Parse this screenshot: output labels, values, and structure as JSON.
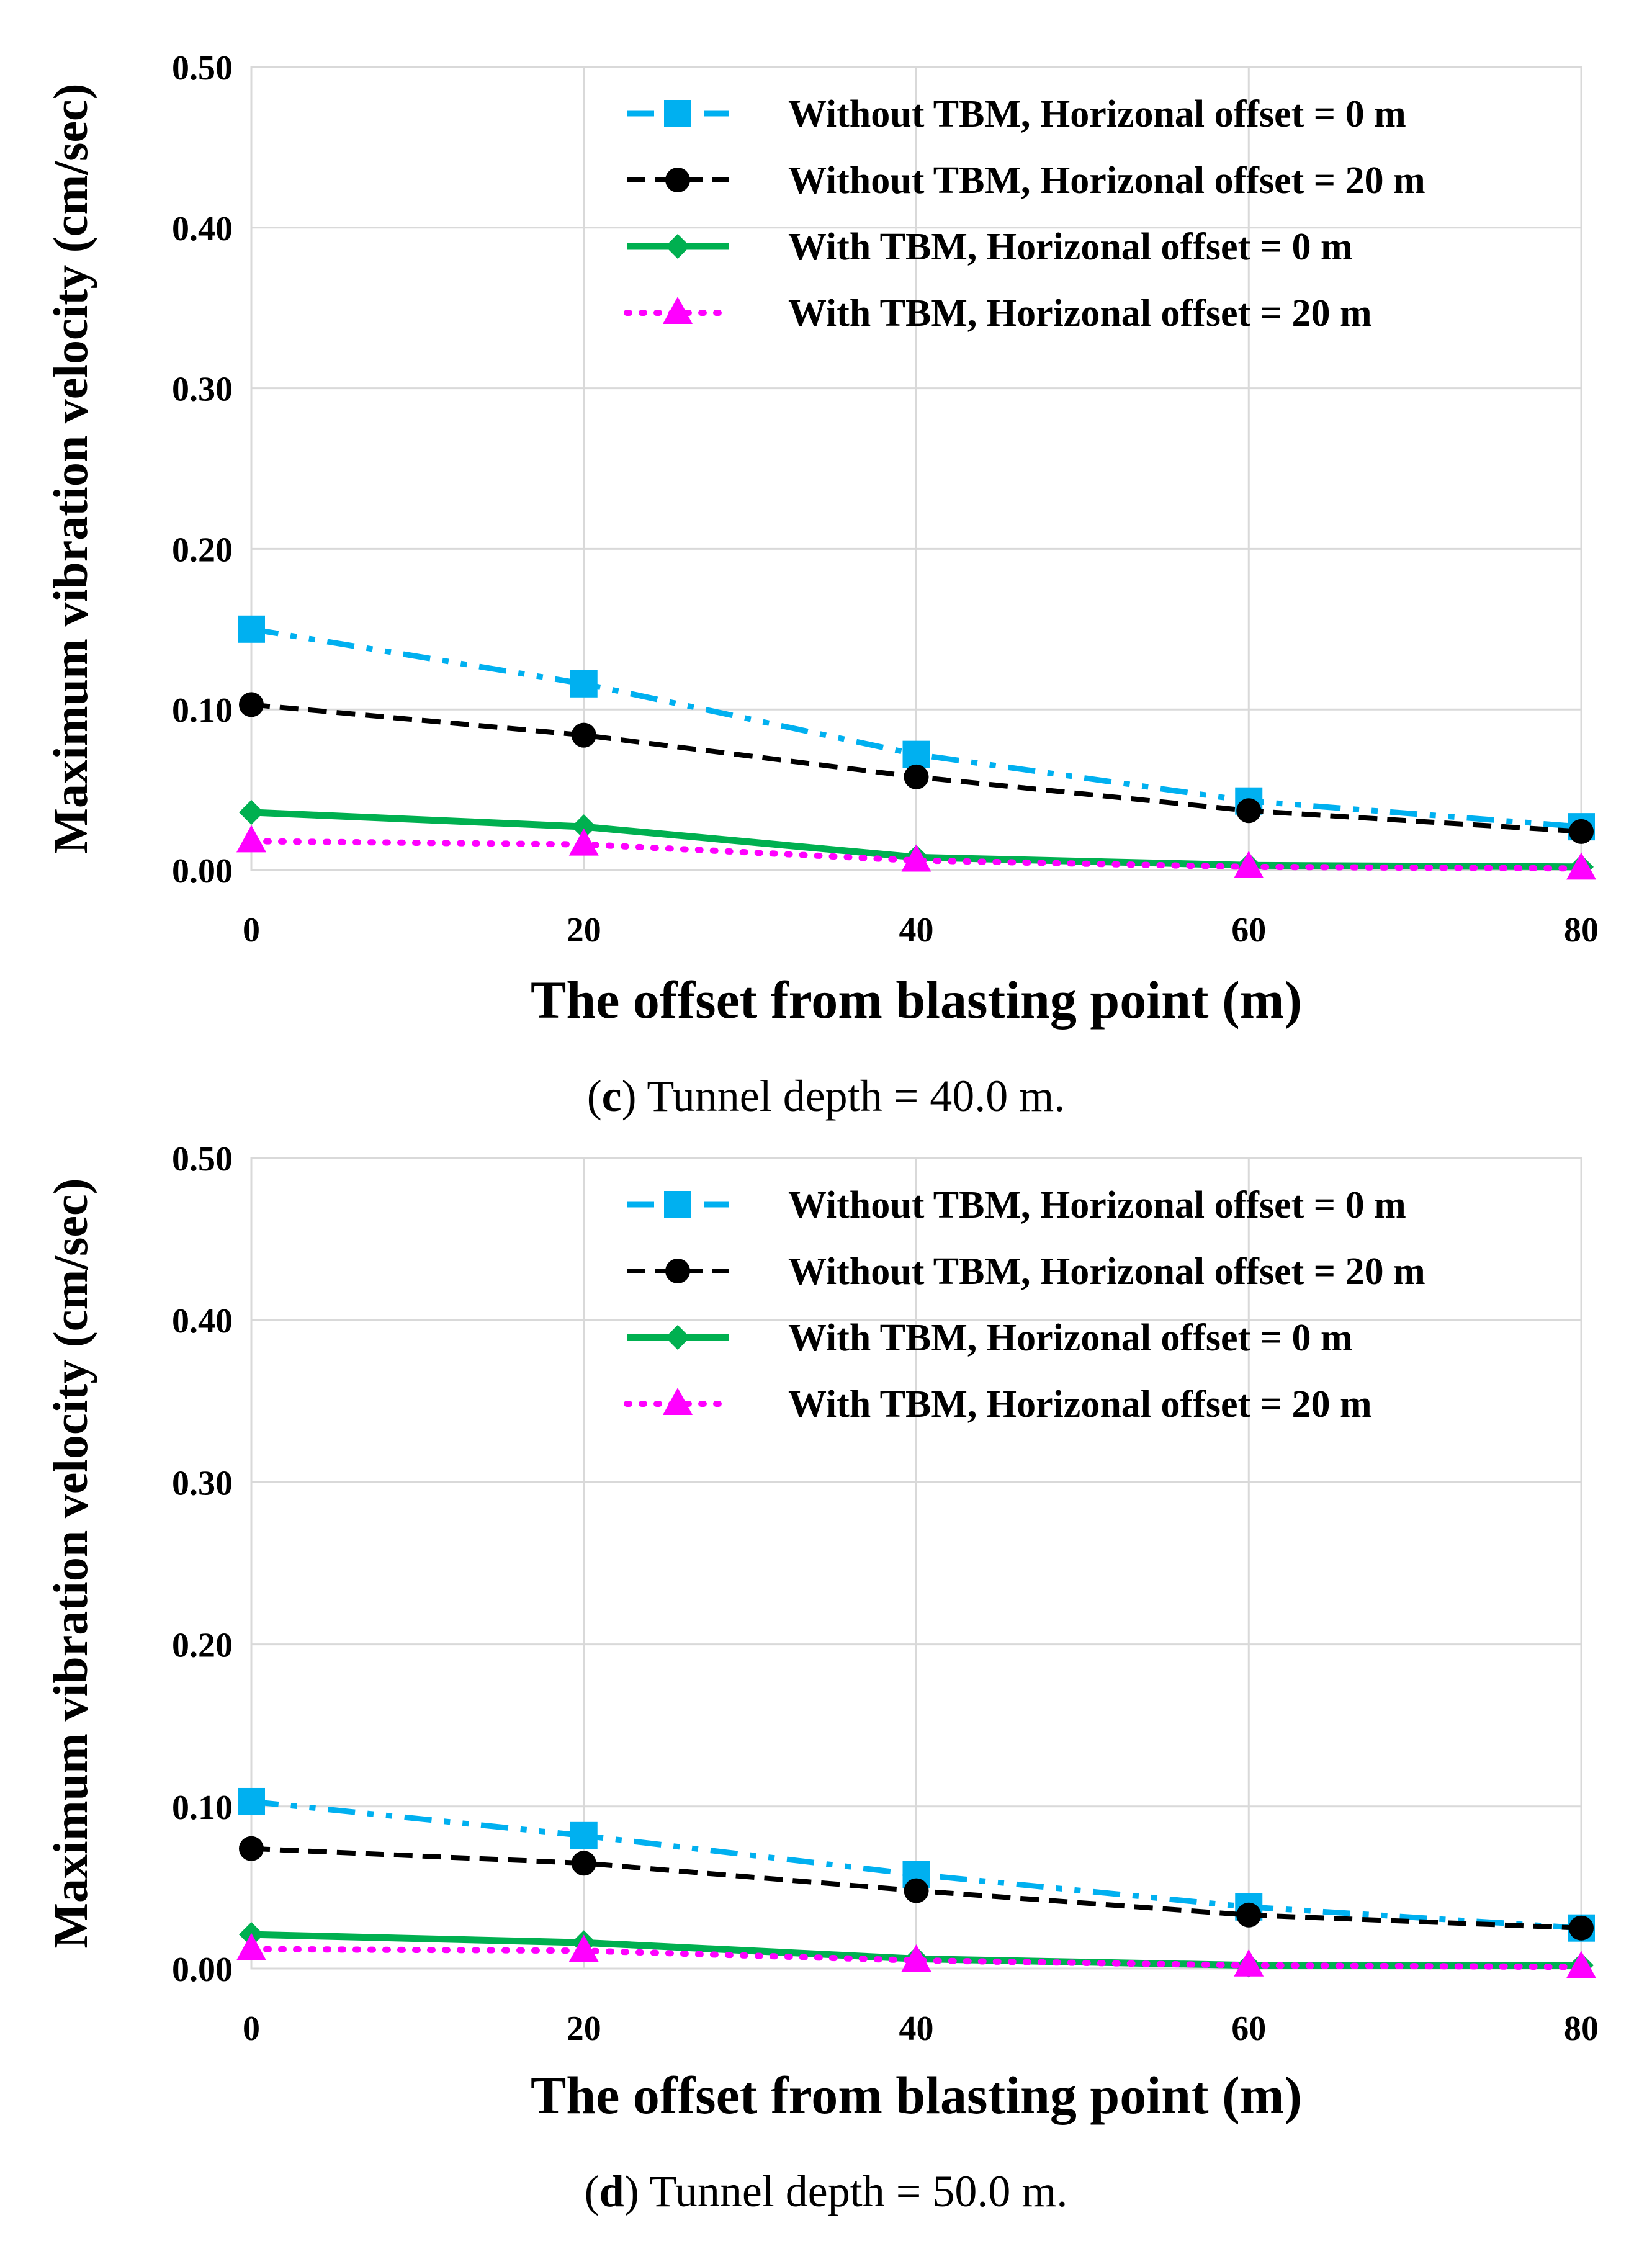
{
  "chart_data": [
    {
      "type": "line",
      "caption_letter": "c",
      "caption_text": ") Tunnel depth = 40.0 m.",
      "caption_open": "(",
      "xlabel": "The offset from blasting point (m)",
      "ylabel": "Maximum vibration velocity (cm/sec)",
      "x": [
        0,
        20,
        40,
        60,
        80
      ],
      "xlim": [
        0,
        80
      ],
      "ylim": [
        0,
        0.5
      ],
      "xticks": [
        "0",
        "20",
        "40",
        "60",
        "80"
      ],
      "yticks": [
        "0.00",
        "0.10",
        "0.20",
        "0.30",
        "0.40",
        "0.50"
      ],
      "grid": true,
      "legend_position": "top-right",
      "series": [
        {
          "name": "Without TBM, Horizonal offset = 0 m",
          "values": [
            0.15,
            0.116,
            0.072,
            0.043,
            0.027
          ]
        },
        {
          "name": "Without TBM, Horizonal offset = 20 m",
          "values": [
            0.103,
            0.084,
            0.058,
            0.037,
            0.024
          ]
        },
        {
          "name": "With TBM, Horizonal offset = 0 m",
          "values": [
            0.036,
            0.027,
            0.008,
            0.003,
            0.002
          ]
        },
        {
          "name": "With TBM, Horizonal offset = 20 m",
          "values": [
            0.018,
            0.016,
            0.006,
            0.002,
            0.001
          ]
        }
      ]
    },
    {
      "type": "line",
      "caption_letter": "d",
      "caption_text": ") Tunnel depth = 50.0 m.",
      "caption_open": "(",
      "xlabel": "The offset from blasting point (m)",
      "ylabel": "Maximum vibration velocity (cm/sec)",
      "x": [
        0,
        20,
        40,
        60,
        80
      ],
      "xlim": [
        0,
        80
      ],
      "ylim": [
        0,
        0.5
      ],
      "xticks": [
        "0",
        "20",
        "40",
        "60",
        "80"
      ],
      "yticks": [
        "0.00",
        "0.10",
        "0.20",
        "0.30",
        "0.40",
        "0.50"
      ],
      "grid": true,
      "legend_position": "top-right",
      "series": [
        {
          "name": "Without TBM, Horizonal offset = 0 m",
          "values": [
            0.103,
            0.082,
            0.058,
            0.038,
            0.025
          ]
        },
        {
          "name": "Without TBM, Horizonal offset = 20 m",
          "values": [
            0.074,
            0.065,
            0.048,
            0.033,
            0.025
          ]
        },
        {
          "name": "With TBM, Horizonal offset = 0 m",
          "values": [
            0.021,
            0.016,
            0.006,
            0.002,
            0.002
          ]
        },
        {
          "name": "With TBM, Horizonal offset = 20 m",
          "values": [
            0.012,
            0.011,
            0.005,
            0.002,
            0.001
          ]
        }
      ]
    }
  ],
  "colors": {
    "series": [
      "#00B0F0",
      "#000000",
      "#00B050",
      "#FF00FF"
    ],
    "grid": "#D9D9D9"
  }
}
